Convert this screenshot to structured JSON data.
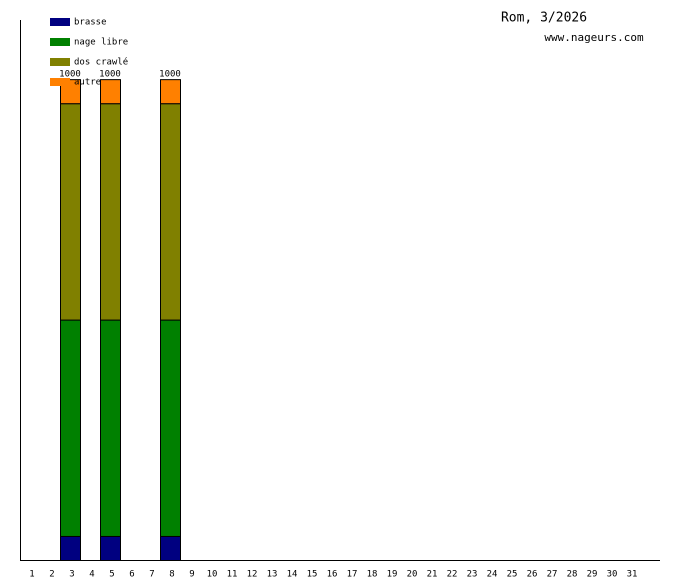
{
  "chart_data": {
    "type": "stacked_bar",
    "title": "Rom, 3/2026",
    "subtitle": "www.nageurs.com",
    "categories": [
      "1",
      "2",
      "3",
      "4",
      "5",
      "6",
      "7",
      "8",
      "9",
      "10",
      "11",
      "12",
      "13",
      "14",
      "15",
      "16",
      "17",
      "18",
      "19",
      "20",
      "21",
      "22",
      "23",
      "24",
      "25",
      "26",
      "27",
      "28",
      "29",
      "30",
      "31"
    ],
    "series": [
      {
        "name": "brasse",
        "color": "#000080",
        "values": [
          null,
          null,
          50,
          null,
          50,
          null,
          null,
          50,
          null,
          null,
          null,
          null,
          null,
          null,
          null,
          null,
          null,
          null,
          null,
          null,
          null,
          null,
          null,
          null,
          null,
          null,
          null,
          null,
          null,
          null,
          null
        ]
      },
      {
        "name": "nage libre",
        "color": "#008000",
        "values": [
          null,
          null,
          450,
          null,
          450,
          null,
          null,
          450,
          null,
          null,
          null,
          null,
          null,
          null,
          null,
          null,
          null,
          null,
          null,
          null,
          null,
          null,
          null,
          null,
          null,
          null,
          null,
          null,
          null,
          null,
          null
        ]
      },
      {
        "name": "dos crawlé",
        "color": "#808000",
        "values": [
          null,
          null,
          450,
          null,
          450,
          null,
          null,
          450,
          null,
          null,
          null,
          null,
          null,
          null,
          null,
          null,
          null,
          null,
          null,
          null,
          null,
          null,
          null,
          null,
          null,
          null,
          null,
          null,
          null,
          null,
          null
        ]
      },
      {
        "name": "autre",
        "color": "#ff8000",
        "values": [
          null,
          null,
          50,
          null,
          50,
          null,
          null,
          50,
          null,
          null,
          null,
          null,
          null,
          null,
          null,
          null,
          null,
          null,
          null,
          null,
          null,
          null,
          null,
          null,
          null,
          null,
          null,
          null,
          null,
          null,
          null
        ]
      }
    ],
    "total_labels": [
      null,
      null,
      "1000",
      null,
      "1000",
      null,
      null,
      "1000",
      null,
      null,
      null,
      null,
      null,
      null,
      null,
      null,
      null,
      null,
      null,
      null,
      null,
      null,
      null,
      null,
      null,
      null,
      null,
      null,
      null,
      null,
      null
    ],
    "ylim": [
      0,
      1123
    ],
    "legend": "top-left"
  }
}
